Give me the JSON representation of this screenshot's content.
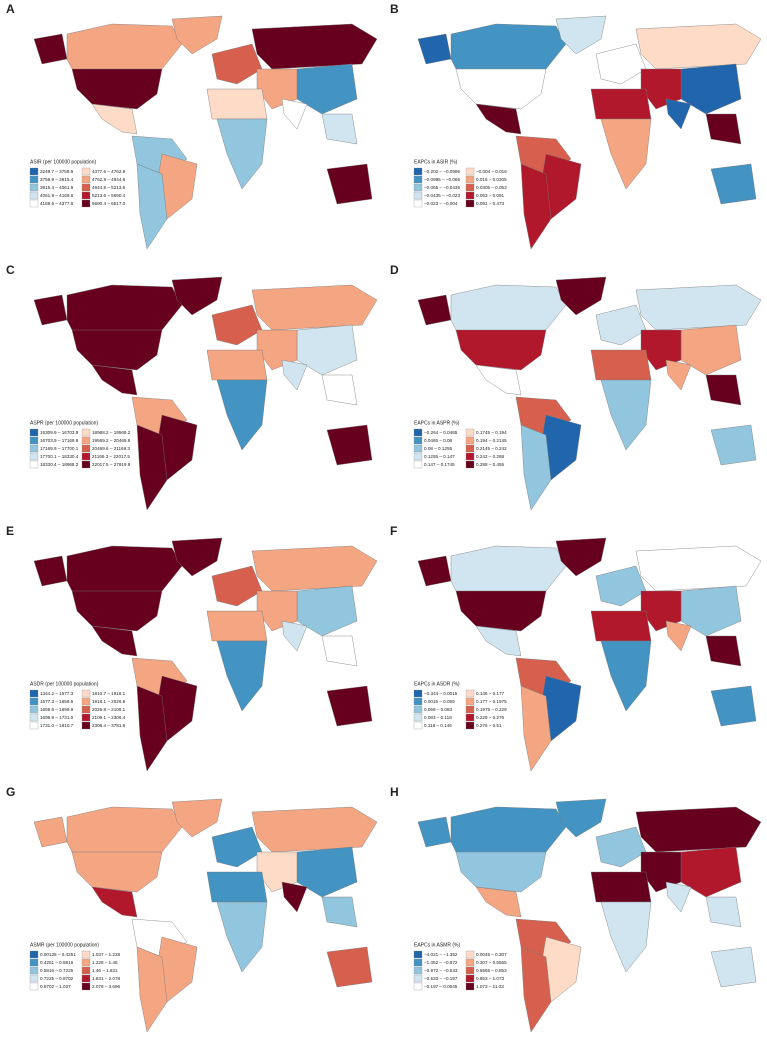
{
  "palette": [
    "#2166ac",
    "#4393c3",
    "#92c5de",
    "#d1e5f0",
    "#ffffff",
    "#fddbc7",
    "#f4a582",
    "#d6604d",
    "#b2182b",
    "#67001f"
  ],
  "panels": [
    {
      "label": "A",
      "legend": {
        "title": "ASIR (per 100000 population)",
        "ranges": [
          "3249.7 – 3759.9",
          "3759.9 – 3915.4",
          "3915.4 – 4061.9",
          "4061.9 – 4169.6",
          "4169.6 – 4377.6",
          "4377.6 – 4762.9",
          "4762.9 – 4944.8",
          "4944.8 – 5213.6",
          "5213.6 – 5690.4",
          "5690.4 – 6517.0"
        ]
      }
    },
    {
      "label": "B",
      "legend": {
        "title": "EAPCs in ASIR (%)",
        "ranges": [
          "−0.202 – −0.0995",
          "−0.0995 – −0.065",
          "−0.065 – −0.0435",
          "−0.0435 – −0.023",
          "−0.023 – −0.004",
          "−0.004 – 0.016",
          "0.016 – 0.0305",
          "0.0305 – 0.053",
          "0.053 – 0.091",
          "0.091 – 0.473"
        ]
      }
    },
    {
      "label": "C",
      "legend": {
        "title": "ASPR (per 100000 population)",
        "ranges": [
          "15309.9 – 16703.9",
          "16703.9 – 17169.9",
          "17169.9 – 17700.1",
          "17700.1 – 18330.4",
          "18330.4 – 18968.2",
          "18968.2 – 19569.2",
          "19569.2 – 20469.6",
          "20469.6 – 21169.3",
          "21169.3 – 22017.5",
          "22017.5 – 27919.9"
        ]
      }
    },
    {
      "label": "D",
      "legend": {
        "title": "EAPCs in ASPR (%)",
        "ranges": [
          "−0.264 – 0.0465",
          "0.0465 – 0.08",
          "0.08 – 0.1255",
          "0.1255 – 0.147",
          "0.147 – 0.1745",
          "0.1745 – 0.194",
          "0.194 – 0.2145",
          "0.2145 – 0.242",
          "0.242 – 0.288",
          "0.288 – 0.455"
        ]
      }
    },
    {
      "label": "E",
      "legend": {
        "title": "ASDR (per 100000 population)",
        "ranges": [
          "1344.2 – 1577.3",
          "1577.3 – 1659.6",
          "1659.6 – 1699.9",
          "1699.9 – 1731.0",
          "1731.0 – 1810.7",
          "1810.7 – 1918.1",
          "1918.1 – 2026.8",
          "2026.8 – 2109.1",
          "2109.1 – 2306.4",
          "2306.4 – 3781.8"
        ]
      }
    },
    {
      "label": "F",
      "legend": {
        "title": "EAPCs in ASDR (%)",
        "ranges": [
          "−0.344 – 0.0015",
          "0.0015 – 0.059",
          "0.059 – 0.083",
          "0.083 – 0.118",
          "0.118 – 0.146",
          "0.146 – 0.177",
          "0.177 – 0.1975",
          "0.1975 – 0.229",
          "0.229 – 0.276",
          "0.276 – 0.51"
        ]
      }
    },
    {
      "label": "G",
      "legend": {
        "title": "ASMR (per 100000 population)",
        "ranges": [
          "0.00128 – 0.4251",
          "0.4251 – 0.5816",
          "0.5816 – 0.7225",
          "0.7225 – 0.8702",
          "0.8702 – 1.037",
          "1.037 – 1.228",
          "1.228 – 1.46",
          "1.46 – 1.831",
          "1.831 – 2.078",
          "2.078 – 3.696"
        ]
      }
    },
    {
      "label": "H",
      "legend": {
        "title": "EAPCs in ASMR (%)",
        "ranges": [
          "−4.021 – −1.352",
          "−1.352 – −0.972",
          "−0.972 – −0.533",
          "−0.533 – −0.197",
          "−0.197 – 0.0045",
          "0.0045 – 0.307",
          "0.307 – 0.5565",
          "0.5565 – 0.853",
          "0.853 – 1.073",
          "1.073 – 11.03"
        ]
      }
    }
  ]
}
